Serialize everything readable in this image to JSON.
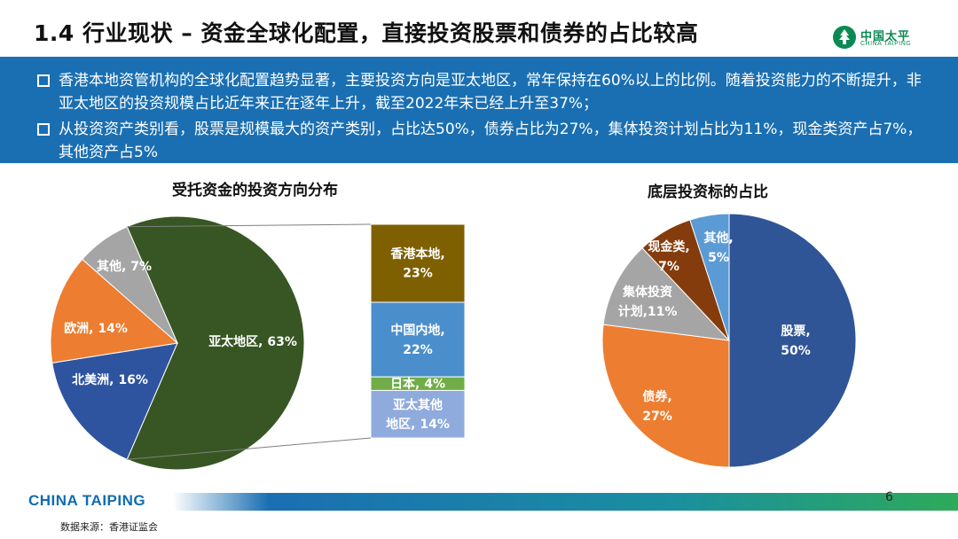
{
  "title": "1.4 行业现状 – 资金全球化配置，直接投资股票和债券的占比较高",
  "logo": {
    "cn": "中国太平",
    "en": "CHINA TAIPING"
  },
  "bullets": [
    "香港本地资管机构的全球化配置趋势显著，主要投资方向是亚太地区，常年保持在60%以上的比例。随着投资能力的不断提升，非亚太地区的投资规模占比近年来正在逐年上升，截至2022年末已经上升至37%；",
    "从投资资产类别看，股票是规模最大的资产类别，占比达50%，债券占比为27%，集体投资计划占比为11%，现金类资产占7%，其他资产占5%"
  ],
  "chart_data": [
    {
      "type": "pie",
      "title": "受托资金的投资方向分布",
      "slices": [
        {
          "label": "亚太地区",
          "value": 63,
          "display": "亚太地区, 63%",
          "color": "#375623"
        },
        {
          "label": "北美洲",
          "value": 16,
          "display": "北美洲, 16%",
          "color": "#2e54a0"
        },
        {
          "label": "欧洲",
          "value": 14,
          "display": "欧洲, 14%",
          "color": "#ed7d31"
        },
        {
          "label": "其他",
          "value": 7,
          "display": "其他, 7%",
          "color": "#a5a5a5"
        }
      ]
    },
    {
      "type": "bar",
      "subtype": "stacked-breakdown",
      "parent": "亚太地区",
      "segments": [
        {
          "label": "香港本地",
          "value": 23,
          "lines": [
            "香港本地,",
            "23%"
          ],
          "color": "#7f6000"
        },
        {
          "label": "中国内地",
          "value": 22,
          "lines": [
            "中国内地,",
            "22%"
          ],
          "color": "#4a8fcc"
        },
        {
          "label": "日本",
          "value": 4,
          "lines": [
            "日本, 4%"
          ],
          "color": "#70ad47"
        },
        {
          "label": "亚太其他地区",
          "value": 14,
          "lines": [
            "亚太其他",
            "地区, 14%"
          ],
          "color": "#8faadc"
        }
      ]
    },
    {
      "type": "pie",
      "title": "底层投资标的占比",
      "slices": [
        {
          "label": "股票",
          "value": 50,
          "lines": [
            "股票,",
            "50%"
          ],
          "color": "#2f5597"
        },
        {
          "label": "债券",
          "value": 27,
          "lines": [
            "债券,",
            "27%"
          ],
          "color": "#ed7d31"
        },
        {
          "label": "集体投资计划",
          "value": 11,
          "lines": [
            "集体投资",
            "计划,11%"
          ],
          "color": "#a5a5a5"
        },
        {
          "label": "现金类",
          "value": 7,
          "lines": [
            "现金类,",
            "7%"
          ],
          "color": "#843c0c"
        },
        {
          "label": "其他",
          "value": 5,
          "lines": [
            "其他,",
            "5%"
          ],
          "color": "#5b9bd5"
        }
      ]
    }
  ],
  "footer": {
    "brand": "CHINA TAIPING",
    "page": "6",
    "source": "数据来源：香港证监会"
  }
}
